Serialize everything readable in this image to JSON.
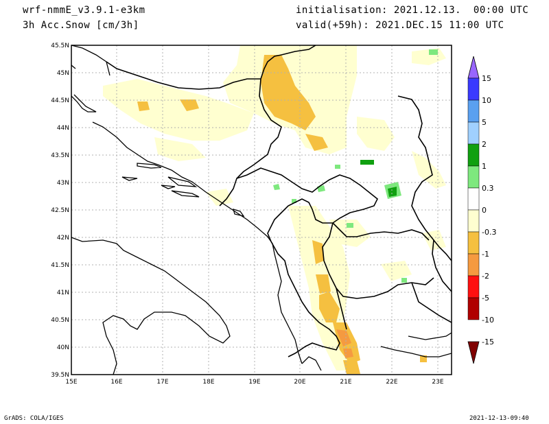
{
  "header": {
    "model": "wrf-nmmE_v3.9.1-e3km",
    "field": "3h Acc.Snow [cm/3h]",
    "init": "initialisation: 2021.12.13.  00:00 UTC",
    "valid": "valid(+59h): 2021.DEC.15 11:00 UTC"
  },
  "footer": {
    "left": "GrADS: COLA/IGES",
    "right": "2021-12-13-09:40"
  },
  "lat_labels": [
    "45.5N",
    "45N",
    "44.5N",
    "44N",
    "43.5N",
    "43N",
    "42.5N",
    "42N",
    "41.5N",
    "41N",
    "40.5N",
    "40N",
    "39.5N"
  ],
  "lon_labels": [
    "15E",
    "16E",
    "17E",
    "18E",
    "19E",
    "20E",
    "21E",
    "22E",
    "23E"
  ],
  "colorbar": {
    "labels": [
      "15",
      "10",
      "5",
      "2",
      "1",
      "0.3",
      "0",
      "-0.3",
      "-1",
      "-2",
      "-5",
      "-10",
      "-15"
    ],
    "colors": [
      "#9966ff",
      "#3a3aff",
      "#5aa0f0",
      "#a0d0ff",
      "#10a010",
      "#7ee87e",
      "#ffffff",
      "#ffffd0",
      "#f5c040",
      "#f59a40",
      "#ff1010",
      "#b00000",
      "#800000"
    ]
  }
}
